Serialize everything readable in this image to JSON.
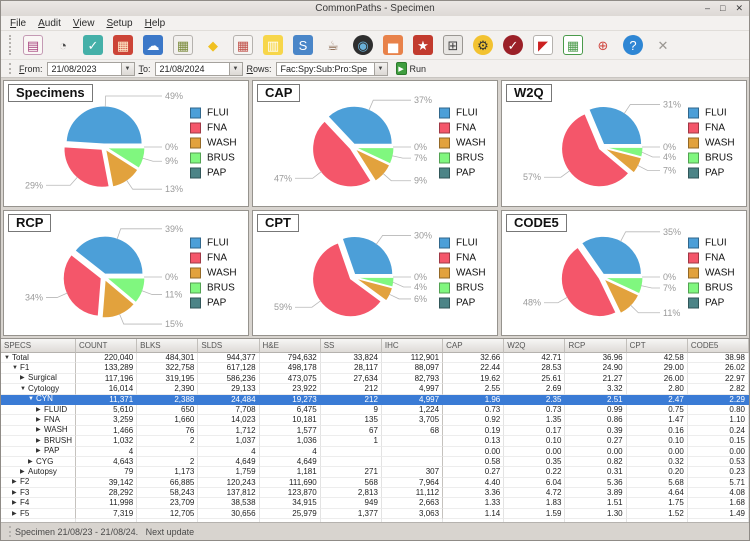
{
  "window": {
    "title": "CommonPaths - Specimen",
    "controls": [
      {
        "name": "minimize-button",
        "glyph": "–"
      },
      {
        "name": "maximize-button",
        "glyph": "□"
      },
      {
        "name": "close-button",
        "glyph": "✕"
      }
    ]
  },
  "menu": {
    "items": [
      "File",
      "Audit",
      "View",
      "Setup",
      "Help"
    ]
  },
  "toolbar": {
    "icons": [
      {
        "name": "database-doc-icon",
        "glyph": "▤",
        "bg": "#faf7f5",
        "fg": "#a9447f",
        "bd": "#c49ab4"
      },
      {
        "name": "clock-24-icon",
        "glyph": "◔",
        "bg": "transparent",
        "fg": "#4a4a4a"
      },
      {
        "name": "clipboard-check-icon",
        "glyph": "✓",
        "bg": "#45b0a8",
        "fg": "#ffffff"
      },
      {
        "name": "color-tiles-icon",
        "glyph": "▦",
        "bg": "#cc4437",
        "fg": "#ffeecc"
      },
      {
        "name": "cloud-icon",
        "glyph": "☁",
        "bg": "#3c78c8",
        "fg": "#ffffff"
      },
      {
        "name": "sheet-chart-icon",
        "glyph": "▦",
        "bg": "#f2f0ee",
        "fg": "#7a8a3a",
        "bd": "#b5b2ae"
      },
      {
        "name": "dollar-sign-icon",
        "glyph": "◆",
        "bg": "transparent",
        "fg": "#f0c020"
      },
      {
        "name": "calendar-icon",
        "glyph": "▦",
        "bg": "#f6f4f2",
        "fg": "#c05048",
        "bd": "#b5b2ae"
      },
      {
        "name": "columns-icon",
        "glyph": "▥",
        "bg": "#f7d64a",
        "fg": "#ffffff"
      },
      {
        "name": "sql-doc-icon",
        "glyph": "S",
        "bg": "#4a86c8",
        "fg": "#ffffff"
      },
      {
        "name": "coffee-cup-icon",
        "glyph": "☕",
        "bg": "transparent",
        "fg": "#7a5236"
      },
      {
        "name": "camera-icon",
        "glyph": "◉",
        "bg": "#2e2e2e",
        "fg": "#6ab0d8",
        "round": true
      },
      {
        "name": "chart-report-icon",
        "glyph": "▅",
        "bg": "#e8824a",
        "fg": "#ffffff"
      },
      {
        "name": "burst-icon",
        "glyph": "★",
        "bg": "#c23b2e",
        "fg": "#ffffff"
      },
      {
        "name": "calculator-icon",
        "glyph": "⊞",
        "bg": "#e8e6e3",
        "fg": "#444444",
        "bd": "#9a9792"
      },
      {
        "name": "gear-icon",
        "glyph": "⚙",
        "bg": "#f2c230",
        "fg": "#333333",
        "round": true
      },
      {
        "name": "wrench-icon",
        "glyph": "✓",
        "bg": "#9b2028",
        "fg": "#ffffff",
        "round": true
      },
      {
        "name": "pdf-reader-icon",
        "glyph": "◤",
        "bg": "#ffffff",
        "fg": "#cc2222",
        "bd": "#b5b2ae"
      },
      {
        "name": "green-table-icon",
        "glyph": "▦",
        "bg": "#ffffff",
        "fg": "#4a9a4a",
        "bd": "#4a9a4a"
      },
      {
        "name": "lifebuoy-icon",
        "glyph": "⊕",
        "bg": "transparent",
        "fg": "#d04840"
      },
      {
        "name": "help-icon",
        "glyph": "?",
        "bg": "#2e86d4",
        "fg": "#ffffff",
        "round": true
      },
      {
        "name": "close-app-icon",
        "glyph": "✕",
        "bg": "transparent",
        "fg": "#9a9792"
      }
    ]
  },
  "filterbar": {
    "from_label": "From:",
    "from_value": "21/08/2023",
    "to_label": "To:",
    "to_value": "21/08/2024",
    "rows_label": "Rows:",
    "rows_value": "Fac:Spy:Sub:Pro:Spe",
    "run_label": "Run"
  },
  "chart_data": [
    {
      "type": "pie",
      "title": "Specimens",
      "labels": [
        "FLUI",
        "FNA",
        "WASH",
        "BRUS",
        "PAP"
      ],
      "values": [
        49,
        29,
        13,
        9,
        0
      ],
      "unit": "%",
      "colors": [
        "#4C9FD8",
        "#F4566A",
        "#E2A23D",
        "#80F77F",
        "#4C8487"
      ],
      "legend_position": "right"
    },
    {
      "type": "pie",
      "title": "CAP",
      "labels": [
        "FLUI",
        "FNA",
        "WASH",
        "BRUS",
        "PAP"
      ],
      "values": [
        37,
        47,
        9,
        7,
        0
      ],
      "unit": "%",
      "colors": [
        "#4C9FD8",
        "#F4566A",
        "#E2A23D",
        "#80F77F",
        "#4C8487"
      ],
      "legend_position": "right"
    },
    {
      "type": "pie",
      "title": "W2Q",
      "labels": [
        "FLUI",
        "FNA",
        "WASH",
        "BRUS",
        "PAP"
      ],
      "values": [
        31,
        57,
        7,
        4,
        0
      ],
      "unit": "%",
      "colors": [
        "#4C9FD8",
        "#F4566A",
        "#E2A23D",
        "#80F77F",
        "#4C8487"
      ],
      "legend_position": "right"
    },
    {
      "type": "pie",
      "title": "RCP",
      "labels": [
        "FLUI",
        "FNA",
        "WASH",
        "BRUS",
        "PAP"
      ],
      "values": [
        39,
        34,
        15,
        11,
        0
      ],
      "unit": "%",
      "colors": [
        "#4C9FD8",
        "#F4566A",
        "#E2A23D",
        "#80F77F",
        "#4C8487"
      ],
      "legend_position": "right"
    },
    {
      "type": "pie",
      "title": "CPT",
      "labels": [
        "FLUI",
        "FNA",
        "WASH",
        "BRUS",
        "PAP"
      ],
      "values": [
        30,
        59,
        6,
        4,
        0
      ],
      "unit": "%",
      "colors": [
        "#4C9FD8",
        "#F4566A",
        "#E2A23D",
        "#80F77F",
        "#4C8487"
      ],
      "legend_position": "right"
    },
    {
      "type": "pie",
      "title": "CODE5",
      "labels": [
        "FLUI",
        "FNA",
        "WASH",
        "BRUS",
        "PAP"
      ],
      "values": [
        35,
        48,
        11,
        7,
        0
      ],
      "unit": "%",
      "colors": [
        "#4C9FD8",
        "#F4566A",
        "#E2A23D",
        "#80F77F",
        "#4C8487"
      ],
      "legend_position": "right"
    }
  ],
  "table": {
    "columns": [
      "SPECS",
      "COUNT",
      "BLKS",
      "SLDS",
      "H&E",
      "SS",
      "IHC",
      "CAP",
      "W2Q",
      "RCP",
      "CPT",
      "CODE5"
    ],
    "rows": [
      {
        "label": "Total",
        "arrow": "expanded",
        "indent": 0,
        "selected": false,
        "cells": [
          "220,040",
          "484,301",
          "944,377",
          "794,632",
          "33,824",
          "112,901",
          "32.66",
          "42.71",
          "36.96",
          "42.58",
          "38.98"
        ]
      },
      {
        "label": "F1",
        "arrow": "expanded",
        "indent": 1,
        "selected": false,
        "cells": [
          "133,289",
          "322,758",
          "617,128",
          "498,178",
          "28,117",
          "88,097",
          "22.44",
          "28.53",
          "24.90",
          "29.00",
          "26.02"
        ]
      },
      {
        "label": "Surgical",
        "arrow": "collapsed",
        "indent": 2,
        "selected": false,
        "cells": [
          "117,196",
          "319,195",
          "586,236",
          "473,075",
          "27,634",
          "82,793",
          "19.62",
          "25.61",
          "21.27",
          "26.00",
          "22.97"
        ]
      },
      {
        "label": "Cytology",
        "arrow": "expanded",
        "indent": 2,
        "selected": false,
        "cells": [
          "16,014",
          "2,390",
          "29,133",
          "23,922",
          "212",
          "4,997",
          "2.55",
          "2.69",
          "3.32",
          "2.80",
          "2.82"
        ]
      },
      {
        "label": "CYN",
        "arrow": "expanded",
        "indent": 3,
        "selected": true,
        "cells": [
          "11,371",
          "2,388",
          "24,484",
          "19,273",
          "212",
          "4,997",
          "1.96",
          "2.35",
          "2.51",
          "2.47",
          "2.29"
        ]
      },
      {
        "label": "FLUID",
        "arrow": "collapsed",
        "indent": 4,
        "selected": false,
        "cells": [
          "5,610",
          "650",
          "7,708",
          "6,475",
          "9",
          "1,224",
          "0.73",
          "0.73",
          "0.99",
          "0.75",
          "0.80"
        ]
      },
      {
        "label": "FNA",
        "arrow": "collapsed",
        "indent": 4,
        "selected": false,
        "cells": [
          "3,259",
          "1,660",
          "14,023",
          "10,181",
          "135",
          "3,705",
          "0.92",
          "1.35",
          "0.86",
          "1.47",
          "1.10"
        ]
      },
      {
        "label": "WASH",
        "arrow": "collapsed",
        "indent": 4,
        "selected": false,
        "cells": [
          "1,466",
          "76",
          "1,712",
          "1,577",
          "67",
          "68",
          "0.19",
          "0.17",
          "0.39",
          "0.16",
          "0.24"
        ]
      },
      {
        "label": "BRUSH",
        "arrow": "collapsed",
        "indent": 4,
        "selected": false,
        "cells": [
          "1,032",
          "2",
          "1,037",
          "1,036",
          "1",
          "",
          "0.13",
          "0.10",
          "0.27",
          "0.10",
          "0.15"
        ]
      },
      {
        "label": "PAP",
        "arrow": "collapsed",
        "indent": 4,
        "selected": false,
        "cells": [
          "4",
          "",
          "4",
          "4",
          "",
          "",
          "0.00",
          "0.00",
          "0.00",
          "0.00",
          "0.00"
        ]
      },
      {
        "label": "CYG",
        "arrow": "collapsed",
        "indent": 3,
        "selected": false,
        "cells": [
          "4,643",
          "2",
          "4,649",
          "4,649",
          "",
          "",
          "0.58",
          "0.35",
          "0.82",
          "0.32",
          "0.53"
        ]
      },
      {
        "label": "Autopsy",
        "arrow": "collapsed",
        "indent": 2,
        "selected": false,
        "cells": [
          "79",
          "1,173",
          "1,759",
          "1,181",
          "271",
          "307",
          "0.27",
          "0.22",
          "0.31",
          "0.20",
          "0.23"
        ]
      },
      {
        "label": "F2",
        "arrow": "collapsed",
        "indent": 1,
        "selected": false,
        "cells": [
          "39,142",
          "66,885",
          "120,243",
          "111,690",
          "568",
          "7,964",
          "4.40",
          "6.04",
          "5.36",
          "5.68",
          "5.71"
        ]
      },
      {
        "label": "F3",
        "arrow": "collapsed",
        "indent": 1,
        "selected": false,
        "cells": [
          "28,292",
          "58,243",
          "137,812",
          "123,870",
          "2,813",
          "11,112",
          "3.36",
          "4.72",
          "3.89",
          "4.64",
          "4.08"
        ]
      },
      {
        "label": "F4",
        "arrow": "collapsed",
        "indent": 1,
        "selected": false,
        "cells": [
          "11,998",
          "23,709",
          "38,538",
          "34,915",
          "949",
          "2,663",
          "1.33",
          "1.83",
          "1.51",
          "1.75",
          "1.68"
        ]
      },
      {
        "label": "F5",
        "arrow": "collapsed",
        "indent": 1,
        "selected": false,
        "cells": [
          "7,319",
          "12,705",
          "30,656",
          "25,979",
          "1,377",
          "3,063",
          "1.14",
          "1.59",
          "1.30",
          "1.52",
          "1.49"
        ]
      }
    ]
  },
  "statusbar": {
    "text": "Specimen 21/08/23 - 21/08/24.   Next update"
  }
}
